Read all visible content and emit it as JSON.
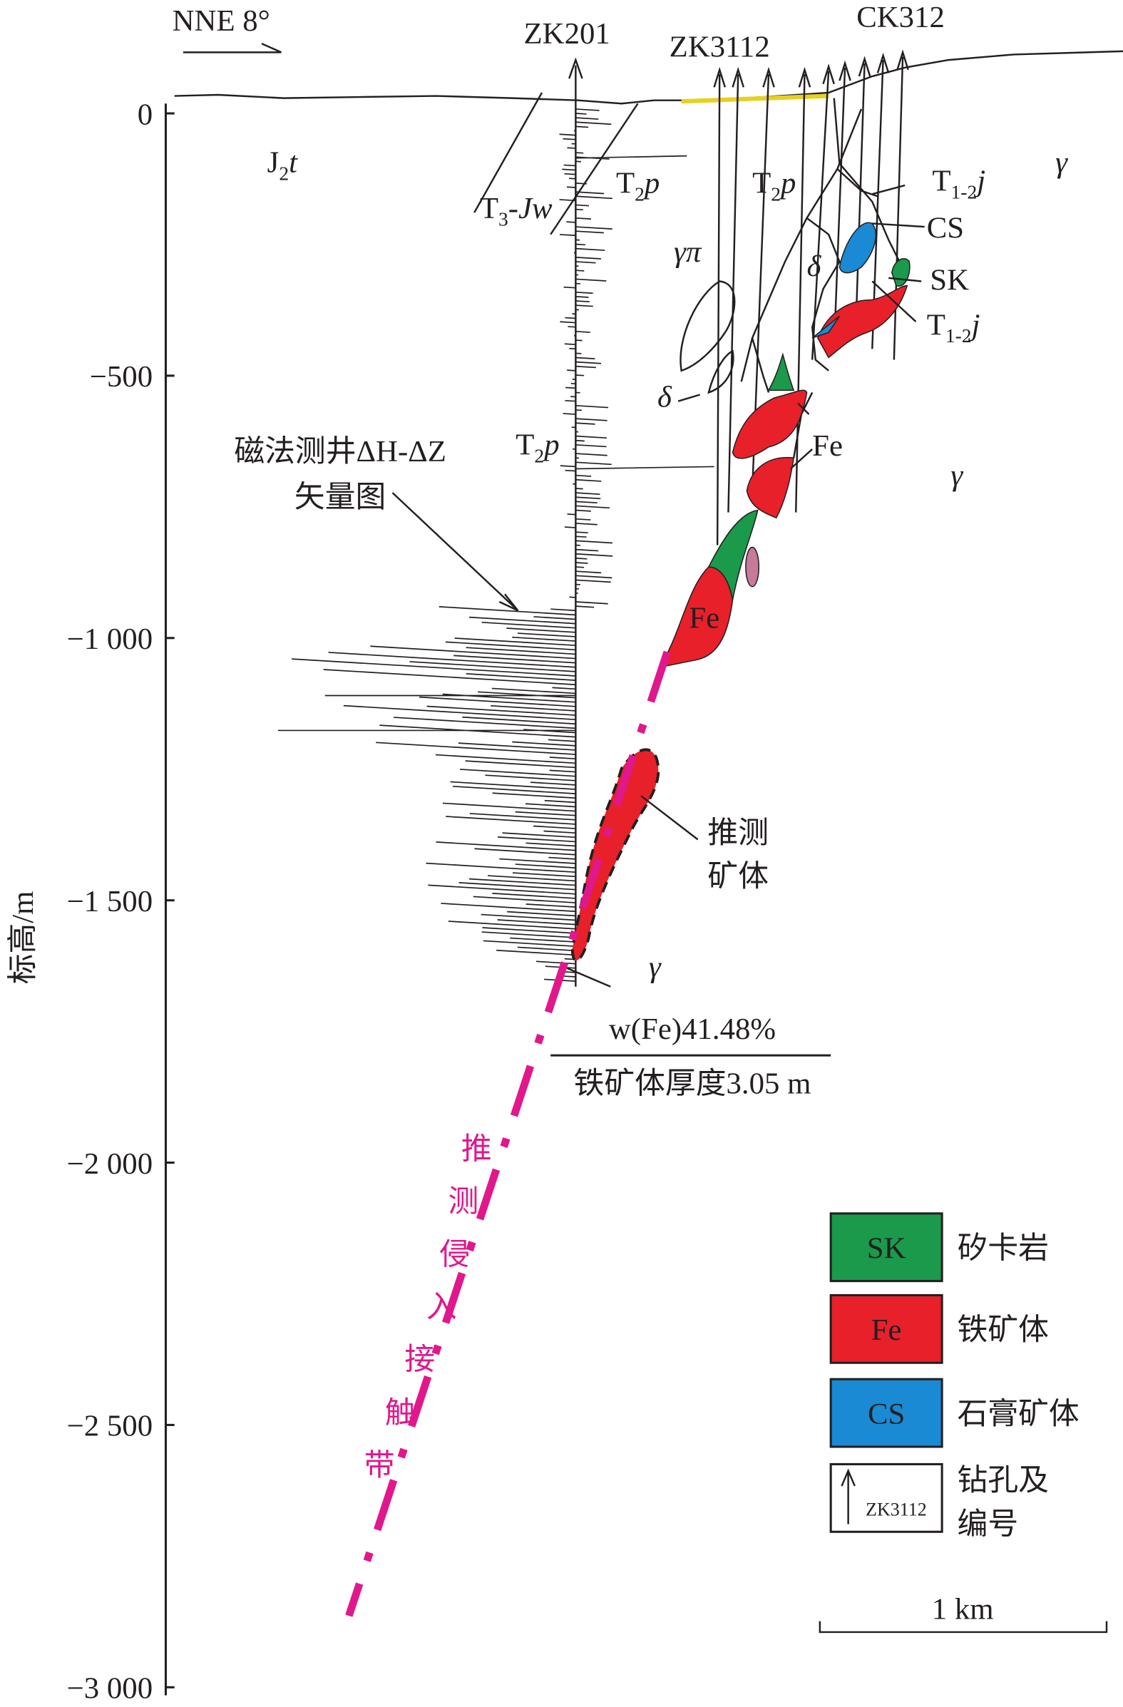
{
  "orientation": "NNE 8°",
  "y_axis": {
    "label": "标高/m",
    "ticks": [
      {
        "value": 0,
        "label": "0"
      },
      {
        "value": -500,
        "label": "−500"
      },
      {
        "value": -1000,
        "label": "−1 000"
      },
      {
        "value": -1500,
        "label": "−1 500"
      },
      {
        "value": -2000,
        "label": "−2 000"
      },
      {
        "value": -2500,
        "label": "−2 500"
      },
      {
        "value": -3000,
        "label": "−3 000"
      }
    ]
  },
  "drill_holes": [
    "ZK201",
    "ZK3112",
    "CK312"
  ],
  "formations": [
    {
      "base": "J",
      "sub": "2",
      "rest": "t"
    },
    {
      "base": "T",
      "sub": "3",
      "rest": "-Jw"
    },
    {
      "base": "T",
      "sub": "2",
      "rest": "p"
    },
    {
      "base": "T",
      "sub": "2",
      "rest": "p"
    },
    {
      "base": "T",
      "sub": "1-2",
      "rest": "j"
    },
    {
      "base": "T",
      "sub": "1-2",
      "rest": "j"
    },
    {
      "base": "T",
      "sub": "2",
      "rest": "p"
    }
  ],
  "rocks": [
    "γ",
    "γ",
    "γ",
    "γπ",
    "δ",
    "δ"
  ],
  "ore_labels": [
    "CS",
    "SK",
    "Fe",
    "Fe"
  ],
  "magnetic_annotation": [
    "磁法测井ΔH-ΔZ",
    "矢量图"
  ],
  "inferred_ore": [
    "推测",
    "矿体"
  ],
  "sample": {
    "grade": "w(Fe)41.48%",
    "thickness": "铁矿体厚度3.05 m"
  },
  "contact_zone": [
    "推",
    "测",
    "侵",
    "入",
    "接",
    "触",
    "带"
  ],
  "legend": [
    {
      "code": "SK",
      "label": "矽卡岩",
      "color": "#1a9a4a"
    },
    {
      "code": "Fe",
      "label": "铁矿体",
      "color": "#e8202a"
    },
    {
      "code": "CS",
      "label": "石膏矿体",
      "color": "#1a8ad4"
    },
    {
      "code": "ZK3112",
      "label": [
        "钻孔及",
        "编号"
      ]
    }
  ],
  "scale_bar": "1 km"
}
